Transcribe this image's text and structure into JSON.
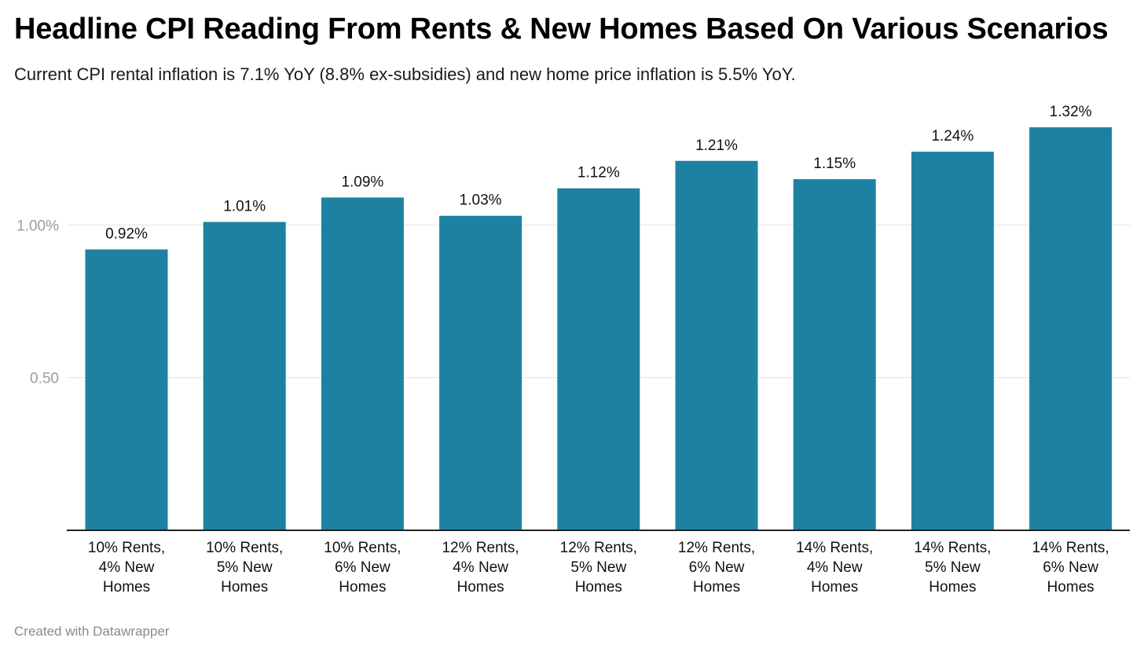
{
  "title": "Headline CPI Reading From Rents & New Homes Based On Various Scenarios",
  "subtitle": "Current CPI rental inflation is 7.1% YoY (8.8% ex-subsidies) and new home price inflation is 5.5% YoY.",
  "credit": "Created with Datawrapper",
  "chart_data": {
    "type": "bar",
    "categories": [
      [
        "10% Rents,",
        "4% New",
        "Homes"
      ],
      [
        "10% Rents,",
        "5% New",
        "Homes"
      ],
      [
        "10% Rents,",
        "6% New",
        "Homes"
      ],
      [
        "12% Rents,",
        "4% New",
        "Homes"
      ],
      [
        "12% Rents,",
        "5% New",
        "Homes"
      ],
      [
        "12% Rents,",
        "6% New",
        "Homes"
      ],
      [
        "14% Rents,",
        "4% New",
        "Homes"
      ],
      [
        "14% Rents,",
        "5% New",
        "Homes"
      ],
      [
        "14% Rents,",
        "6% New",
        "Homes"
      ]
    ],
    "values": [
      0.92,
      1.01,
      1.09,
      1.03,
      1.12,
      1.21,
      1.15,
      1.24,
      1.32
    ],
    "value_labels": [
      "0.92%",
      "1.01%",
      "1.09%",
      "1.03%",
      "1.12%",
      "1.21%",
      "1.15%",
      "1.24%",
      "1.32%"
    ],
    "yticks": [
      {
        "value": 0.5,
        "label": "0.50"
      },
      {
        "value": 1.0,
        "label": "1.00%"
      }
    ],
    "ylim": [
      0,
      1.32
    ],
    "grid": true,
    "bar_color": "#1d82a2",
    "grid_color": "#e3e3e3",
    "axis_color": "#222222"
  }
}
